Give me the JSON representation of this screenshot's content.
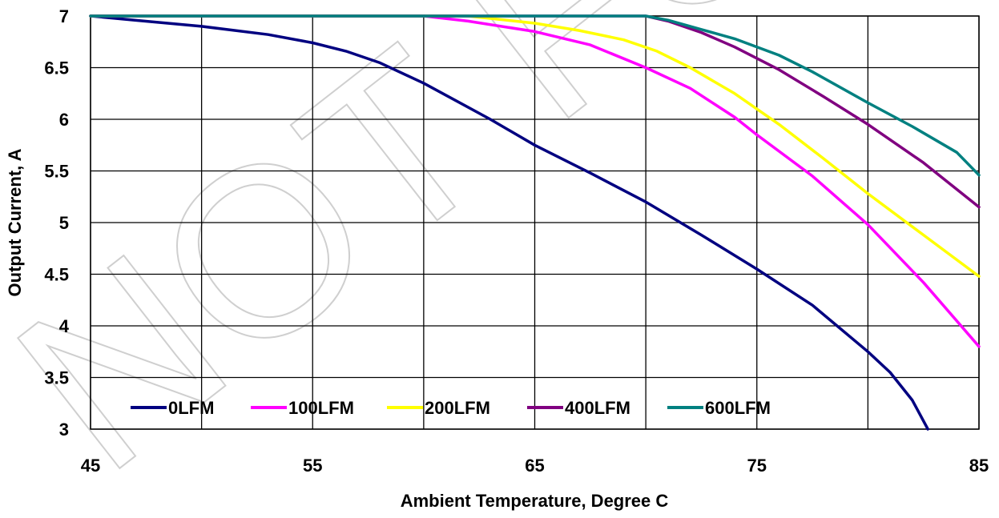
{
  "watermark": "NOT FOR NEW DESIGN",
  "chart_data": {
    "type": "line",
    "title": "",
    "xlabel": "Ambient Temperature, Degree C",
    "ylabel": "Output Current, A",
    "xlim": [
      45,
      85
    ],
    "ylim": [
      3,
      7
    ],
    "xticks": [
      45,
      55,
      65,
      75,
      85
    ],
    "yticks": [
      3,
      3.5,
      4,
      4.5,
      5,
      5.5,
      6,
      6.5,
      7
    ],
    "grid": true,
    "legend_position": "bottom-inside",
    "series": [
      {
        "name": "0LFM",
        "color": "#000080",
        "x": [
          45,
          47,
          50,
          53,
          55,
          56.5,
          58,
          60,
          63,
          65,
          67.5,
          70,
          72.5,
          75,
          77.5,
          80,
          81,
          82,
          82.7
        ],
        "y": [
          7,
          6.96,
          6.9,
          6.82,
          6.74,
          6.66,
          6.55,
          6.35,
          6.0,
          5.75,
          5.48,
          5.2,
          4.88,
          4.55,
          4.2,
          3.75,
          3.55,
          3.28,
          3.0
        ]
      },
      {
        "name": "100LFM",
        "color": "#ff00ff",
        "x": [
          45,
          60,
          62,
          65,
          67.5,
          70,
          72,
          74,
          75,
          77.5,
          80,
          82.5,
          85
        ],
        "y": [
          7,
          7,
          6.95,
          6.85,
          6.72,
          6.5,
          6.3,
          6.02,
          5.85,
          5.45,
          4.98,
          4.42,
          3.8
        ]
      },
      {
        "name": "200LFM",
        "color": "#ffff00",
        "x": [
          45,
          62,
          65,
          67,
          69,
          70.5,
          72,
          74,
          76,
          78,
          80,
          82.5,
          85
        ],
        "y": [
          7,
          7,
          6.93,
          6.86,
          6.77,
          6.66,
          6.5,
          6.25,
          5.95,
          5.62,
          5.28,
          4.88,
          4.48
        ]
      },
      {
        "name": "400LFM",
        "color": "#800080",
        "x": [
          45,
          69,
          70,
          71,
          72.5,
          74,
          76,
          78,
          80,
          82.5,
          85
        ],
        "y": [
          7,
          7,
          7,
          6.95,
          6.84,
          6.7,
          6.48,
          6.22,
          5.95,
          5.58,
          5.15
        ]
      },
      {
        "name": "600LFM",
        "color": "#008080",
        "x": [
          45,
          70,
          71,
          72.5,
          74,
          76,
          77.5,
          80,
          82,
          84,
          85
        ],
        "y": [
          7,
          7,
          6.96,
          6.87,
          6.78,
          6.62,
          6.46,
          6.16,
          5.93,
          5.68,
          5.46
        ]
      }
    ]
  }
}
